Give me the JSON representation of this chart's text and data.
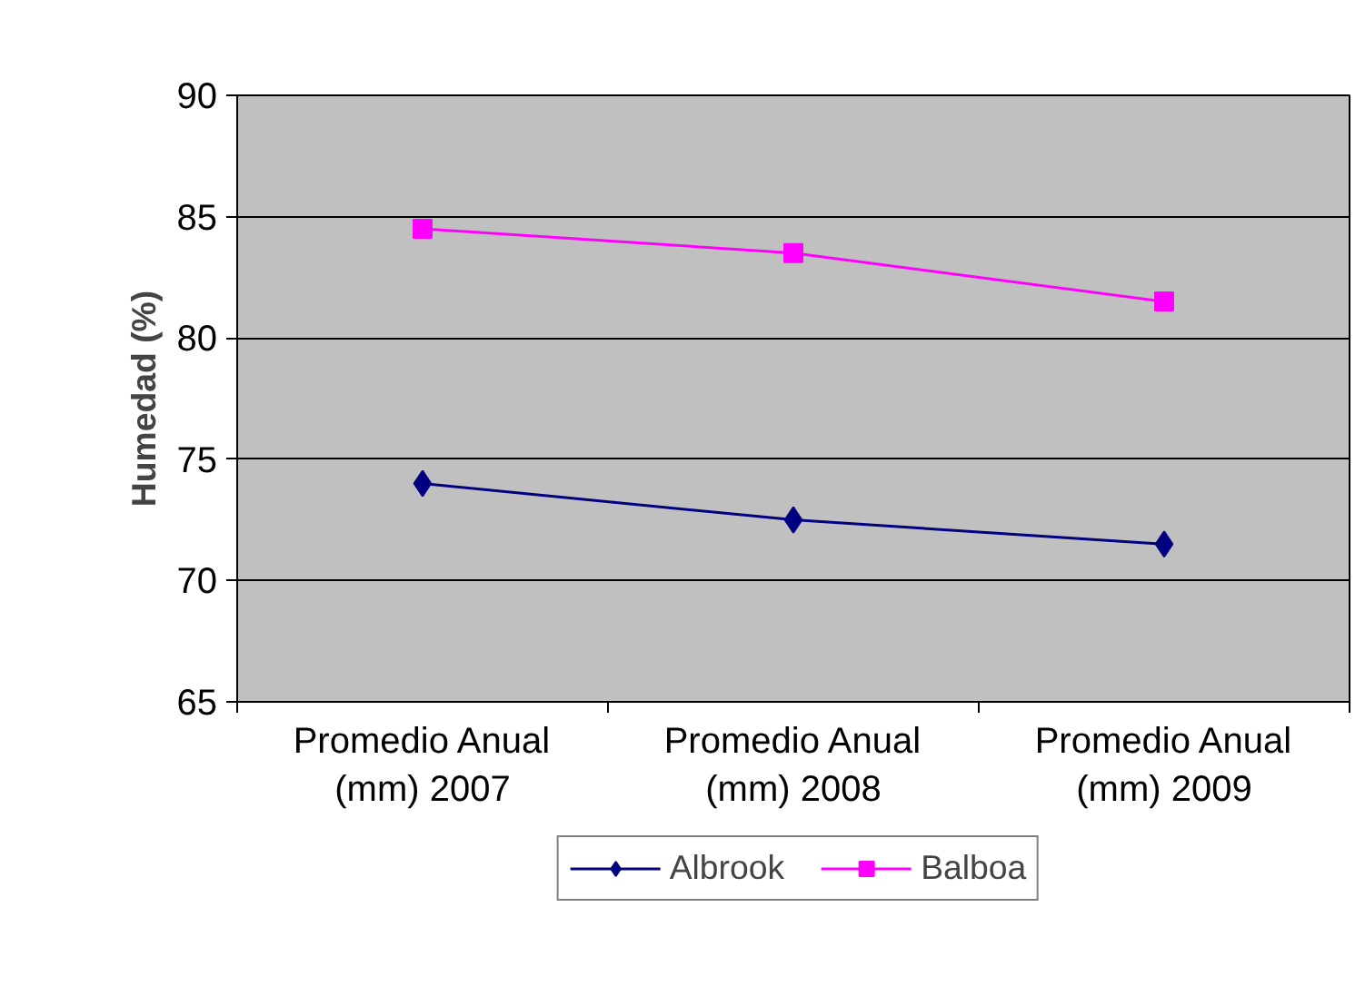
{
  "chart_data": {
    "type": "line",
    "ylabel": "Humedad (%)",
    "categories": [
      "Promedio Anual\n(mm) 2007",
      "Promedio Anual\n(mm) 2008",
      "Promedio Anual\n(mm) 2009"
    ],
    "series": [
      {
        "name": "Albrook",
        "color": "#000080",
        "marker": "diamond",
        "values": [
          74,
          72.5,
          71.5
        ]
      },
      {
        "name": "Balboa",
        "color": "#ff00ff",
        "marker": "square",
        "values": [
          84.5,
          83.5,
          81.5
        ]
      }
    ],
    "ylim": [
      65,
      90
    ],
    "yticks": [
      65,
      70,
      75,
      80,
      85,
      90
    ],
    "grid": "y",
    "legend": "bottom",
    "line_style": "solid"
  }
}
